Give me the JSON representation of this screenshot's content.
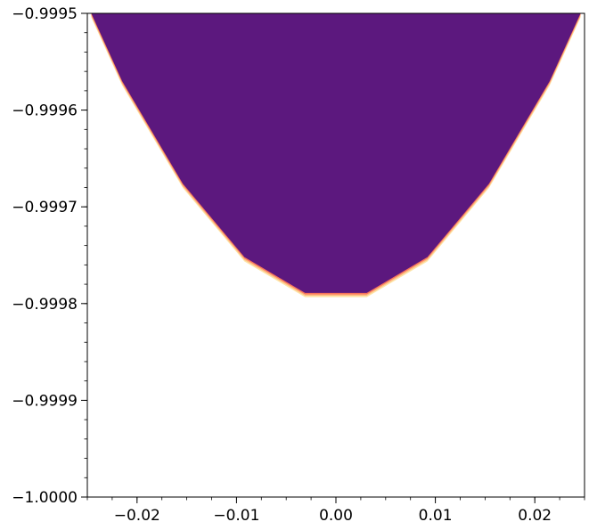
{
  "chart_data": {
    "type": "area",
    "title": "",
    "xlabel": "",
    "ylabel": "",
    "xlim": [
      -0.025,
      0.025
    ],
    "ylim": [
      -1.0,
      -0.9995
    ],
    "x_ticks": [
      -0.02,
      -0.01,
      0.0,
      0.01,
      0.02
    ],
    "x_tick_labels": [
      "−0.02",
      "−0.01",
      "0.00",
      "0.01",
      "0.02"
    ],
    "y_ticks": [
      -1.0,
      -0.9999,
      -0.9998,
      -0.9997,
      -0.9996,
      -0.9995
    ],
    "y_tick_labels": [
      "−1.0000",
      "−0.9999",
      "−0.9998",
      "−0.9997",
      "−0.9996",
      "−0.9995"
    ],
    "x_minor_step": 0.0025,
    "y_minor_step": 2e-05,
    "grid": false,
    "fill_color": "#5c187e",
    "edge_colors": [
      "#f8765c",
      "#febb81",
      "#fde4a6"
    ],
    "series": [
      {
        "x": [
          -0.0246,
          -0.0215,
          -0.0154,
          -0.0092,
          -0.0031,
          0.0031,
          0.0092,
          0.0154,
          0.0215,
          0.0246
        ],
        "y": [
          -0.9995,
          -0.99957,
          -0.999676,
          -0.999752,
          -0.999789,
          -0.999789,
          -0.999752,
          -0.999676,
          -0.99957,
          -0.9995
        ]
      }
    ]
  }
}
